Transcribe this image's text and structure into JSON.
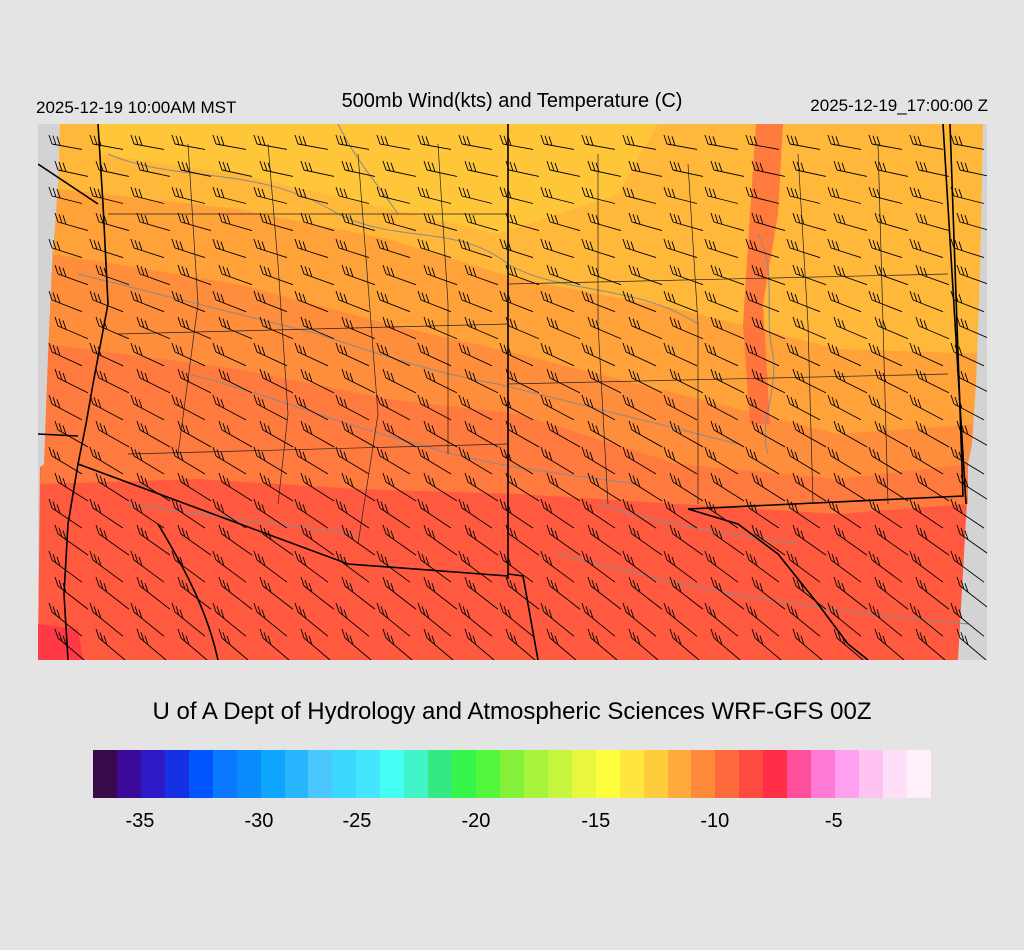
{
  "header": {
    "valid_local": "2025-12-19 10:00AM MST",
    "title": "500mb Wind(kts) and Temperature (C)",
    "valid_utc": "2025-12-19_17:00:00 Z"
  },
  "footer": {
    "credit": "U of A Dept of Hydrology and Atmospheric Sciences WRF-GFS 00Z"
  },
  "colors": {
    "background": "#e4e4e4",
    "outside_domain": "#d3d3d3",
    "contour": "#8a8a8a",
    "boundary": "#000000"
  },
  "colorbar": {
    "colors": [
      "#3b0a4a",
      "#3c0a9a",
      "#2d19c8",
      "#1431e3",
      "#0055ff",
      "#0a79ff",
      "#0a8cff",
      "#0ea6ff",
      "#2ab6ff",
      "#4cc6ff",
      "#3cd7ff",
      "#44e6ff",
      "#46fff4",
      "#40f5c8",
      "#34e882",
      "#38f54a",
      "#52f63a",
      "#84f03a",
      "#a8f33c",
      "#c6f53e",
      "#e8f63e",
      "#fffe3e",
      "#ffe63e",
      "#ffcc3c",
      "#ffaa3c",
      "#ff8a3c",
      "#ff6a3c",
      "#ff4a40",
      "#ff2d48",
      "#ff4f9a",
      "#ff79d5",
      "#ffa0f0",
      "#ffc3f3",
      "#ffdff8",
      "#fff0fc"
    ],
    "tick_labels": [
      "-35",
      "-30",
      "-25",
      "-20",
      "-15",
      "-10",
      "-5"
    ],
    "tick_positions": [
      0.056,
      0.198,
      0.315,
      0.457,
      0.6,
      0.742,
      0.884
    ]
  },
  "map_fields": {
    "temperature_colors": {
      "warm": "#ffd23a",
      "mid_warm": "#ffb23a",
      "mid": "#ff9a3c",
      "mid_cool": "#ff7e3c",
      "cool": "#ff5a40",
      "coldest": "#ff3a44"
    }
  }
}
